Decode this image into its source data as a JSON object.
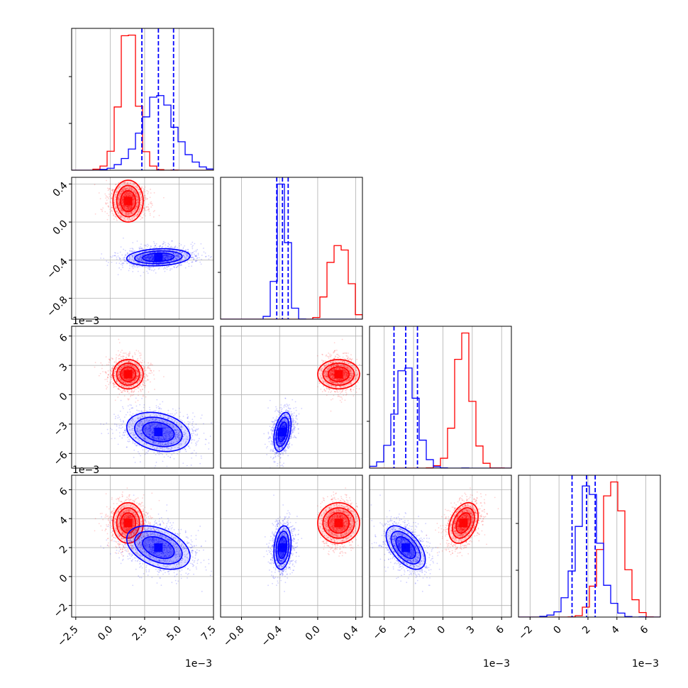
{
  "colors": {
    "red": "#ff0000",
    "blue": "#0000ff",
    "grid": "#b0b0b0",
    "frame": "#000000"
  },
  "chart_data": {
    "type": "scatter",
    "layout": "corner-plot",
    "grid": true,
    "parameters": [
      {
        "range": [
          -2.8,
          7.5
        ],
        "ticks": [
          -2.5,
          0.0,
          2.5,
          5.0,
          7.5
        ],
        "tick_labels": [
          "−2.5",
          "0.0",
          "2.5",
          "5.0",
          "7.5"
        ],
        "offset_label": "1e−3"
      },
      {
        "range": [
          -1.02,
          0.47
        ],
        "ticks": [
          -0.8,
          -0.4,
          0.0,
          0.4
        ],
        "tick_labels": [
          "−0.8",
          "−0.4",
          "0.0",
          "0.4"
        ],
        "offset_label": ""
      },
      {
        "range": [
          -7.5,
          7.0
        ],
        "ticks": [
          -6,
          -3,
          0,
          3,
          6
        ],
        "tick_labels": [
          "−6",
          "−3",
          "0",
          "3",
          "6"
        ],
        "offset_label": "1e−3"
      },
      {
        "range": [
          -2.8,
          7.0
        ],
        "ticks": [
          -2,
          0,
          2,
          4,
          6
        ],
        "tick_labels": [
          "−2",
          "0",
          "2",
          "4",
          "6"
        ],
        "offset_label": "1e−3"
      }
    ],
    "series": [
      {
        "color": "red",
        "mean": [
          1.3,
          0.22,
          2.1,
          3.7
        ],
        "std": [
          0.55,
          0.11,
          0.75,
          0.7
        ],
        "spread": [
          1.6,
          0.2,
          1.6,
          1.3
        ],
        "correlation": [
          [
            1,
            0,
            0,
            0
          ],
          [
            0,
            1,
            0,
            0
          ],
          [
            0,
            0,
            1,
            0.35
          ],
          [
            0,
            0,
            0.35,
            1
          ]
        ]
      },
      {
        "color": "blue",
        "mean": [
          3.5,
          -0.37,
          -3.8,
          2.0
        ],
        "std": [
          1.15,
          0.045,
          1.0,
          0.75
        ],
        "spread": [
          1.4,
          1.8,
          1.3,
          1.4
        ],
        "correlation": [
          [
            1,
            0.15,
            -0.25,
            -0.4
          ],
          [
            0.15,
            1,
            0.4,
            0.2
          ],
          [
            -0.25,
            0.4,
            1,
            -0.55
          ],
          [
            -0.4,
            0.2,
            -0.55,
            1
          ]
        ],
        "quantiles": [
          [
            2.3,
            3.5,
            4.6
          ],
          [
            -0.43,
            -0.37,
            -0.31
          ],
          [
            -5.0,
            -3.8,
            -2.6
          ],
          [
            0.9,
            1.9,
            2.5
          ]
        ]
      }
    ]
  }
}
